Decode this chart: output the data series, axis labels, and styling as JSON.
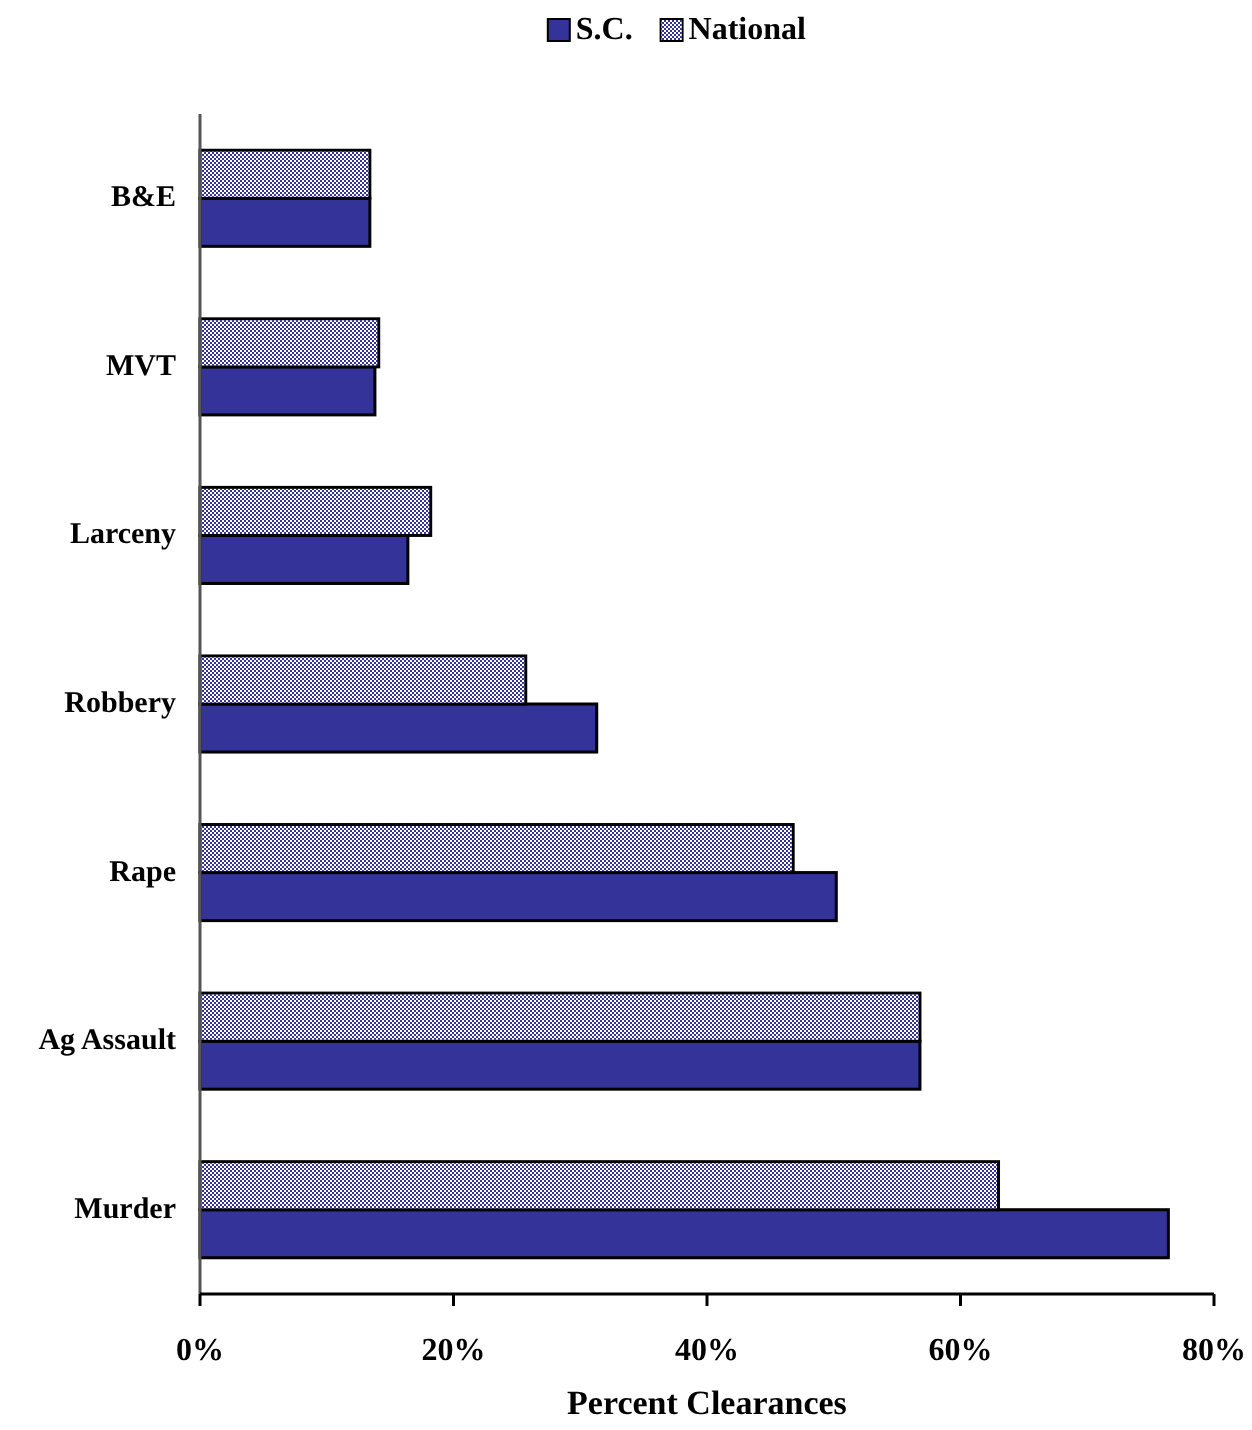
{
  "chart_data": {
    "type": "bar",
    "orientation": "horizontal",
    "xlabel": "Percent Clearances",
    "categories": [
      "B&E",
      "MVT",
      "Larceny",
      "Robbery",
      "Rape",
      "Ag Assault",
      "Murder"
    ],
    "series": [
      {
        "name": "S.C.",
        "color": "#333399",
        "values": [
          13.4,
          13.8,
          16.4,
          31.3,
          50.2,
          56.8,
          76.4
        ]
      },
      {
        "name": "National",
        "color": "#9999cc",
        "values": [
          13.4,
          14.1,
          18.2,
          25.7,
          46.8,
          56.8,
          63.0
        ]
      }
    ],
    "xlim": [
      0,
      80
    ],
    "xticks": [
      {
        "value": 0,
        "label": "0%"
      },
      {
        "value": 20,
        "label": "20%"
      },
      {
        "value": 40,
        "label": "40%"
      },
      {
        "value": 60,
        "label": "60%"
      },
      {
        "value": 80,
        "label": "80%"
      }
    ],
    "legend": "top"
  }
}
